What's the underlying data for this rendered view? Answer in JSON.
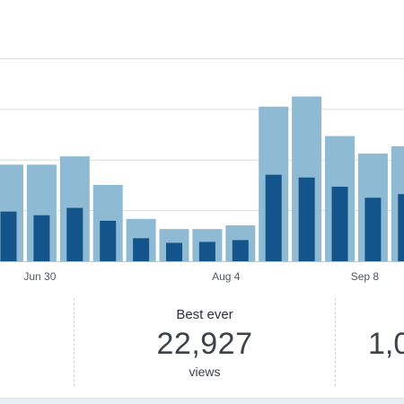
{
  "chart_data": {
    "type": "bar",
    "x_tick_labels": [
      "Jun 30",
      "Aug 4",
      "Sep 8"
    ],
    "series": [
      {
        "values": [
          5250,
          5250,
          5700,
          4150,
          2300,
          1750,
          1750,
          1950,
          8400,
          8950,
          6800,
          5850,
          6250
        ]
      },
      {
        "values": [
          2700,
          2500,
          2900,
          2200,
          1250,
          1000,
          1050,
          1150,
          4700,
          4550,
          4050,
          3450,
          3650
        ]
      }
    ],
    "ylim": [
      0,
      11000
    ],
    "gridlines": [
      2750,
      5500,
      8250
    ],
    "grid": true,
    "colors": {
      "views": "#8fbad3",
      "visitors": "#13548a",
      "grid": "#dcdcde",
      "baseline": "#c3c4c7"
    }
  },
  "stats": {
    "best_ever": {
      "title": "Best ever",
      "value": "22,927",
      "unit": "views"
    },
    "right": {
      "value": "1,0"
    }
  }
}
